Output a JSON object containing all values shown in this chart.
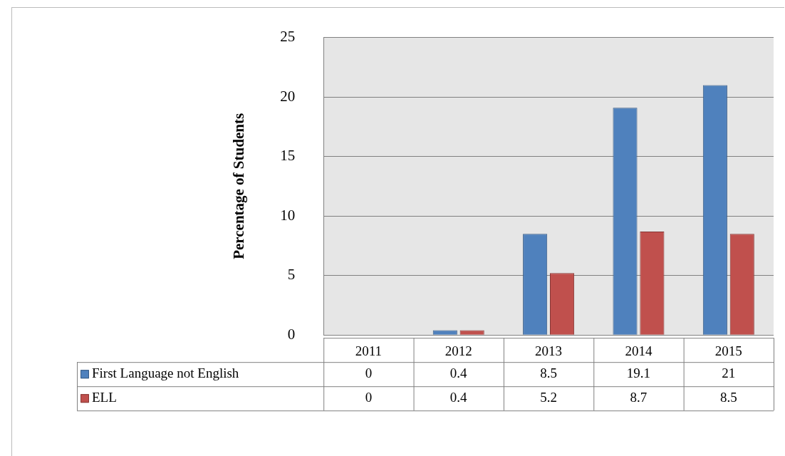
{
  "chart_data": {
    "type": "bar",
    "ylabel": "Percentage of Students",
    "categories": [
      "2011",
      "2012",
      "2013",
      "2014",
      "2015"
    ],
    "series": [
      {
        "name": "First Language not English",
        "color": "#4f81bd",
        "values": [
          0,
          0.4,
          8.5,
          19.1,
          21
        ]
      },
      {
        "name": "ELL",
        "color": "#c0504d",
        "values": [
          0,
          0.4,
          5.2,
          8.7,
          8.5
        ]
      }
    ],
    "ylim": [
      0,
      25
    ],
    "yticks": [
      0,
      5,
      10,
      15,
      20,
      25
    ],
    "grid": "y",
    "legend": "bottom",
    "data_labels": true
  }
}
